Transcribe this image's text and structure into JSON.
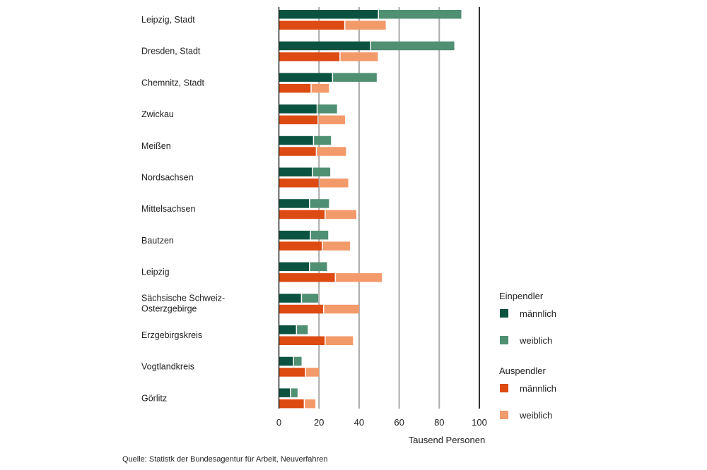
{
  "chart_data": {
    "type": "bar",
    "orientation": "horizontal",
    "stacked": true,
    "xlabel": "Tausend Personen",
    "xlim": [
      0,
      100
    ],
    "xticks": [
      0,
      20,
      40,
      60,
      80,
      100
    ],
    "grid": true,
    "legend_position": "right",
    "categories": [
      "Leipzig, Stadt",
      "Dresden, Stadt",
      "Chemnitz, Stadt",
      "Zwickau",
      "Meißen",
      "Nordsachsen",
      "Mittelsachsen",
      "Bautzen",
      "Leipzig",
      "Sächsische Schweiz-\nOsterzgebirge",
      "Erzgebirgskreis",
      "Vogtlandkreis",
      "Görlitz"
    ],
    "groups": [
      {
        "name": "Einpendler",
        "series": [
          {
            "name": "männlich",
            "color": "#0b5340",
            "values": [
              49.4,
              45.5,
              26.5,
              18.8,
              17.0,
              16.4,
              15.0,
              15.5,
              15.0,
              11.0,
              8.5,
              7.0,
              5.5
            ]
          },
          {
            "name": "weiblich",
            "color": "#4f8f72",
            "values": [
              41.6,
              42.0,
              22.3,
              10.2,
              9.0,
              9.2,
              10.0,
              9.1,
              9.0,
              8.6,
              5.9,
              4.3,
              3.8
            ]
          }
        ]
      },
      {
        "name": "Auspendler",
        "series": [
          {
            "name": "männlich",
            "color": "#dd4a12",
            "values": [
              32.6,
              30.2,
              15.8,
              19.3,
              18.4,
              19.8,
              22.8,
              21.4,
              27.9,
              22.0,
              22.8,
              13.0,
              12.4
            ]
          },
          {
            "name": "weiblich",
            "color": "#f39a6b",
            "values": [
              20.7,
              19.2,
              9.2,
              13.7,
              15.1,
              14.8,
              15.8,
              14.1,
              23.5,
              18.0,
              14.2,
              7.0,
              5.8
            ]
          }
        ]
      }
    ]
  },
  "source": "Quelle: Statistk der Bundesagentur für Arbeit, Neuverfahren"
}
